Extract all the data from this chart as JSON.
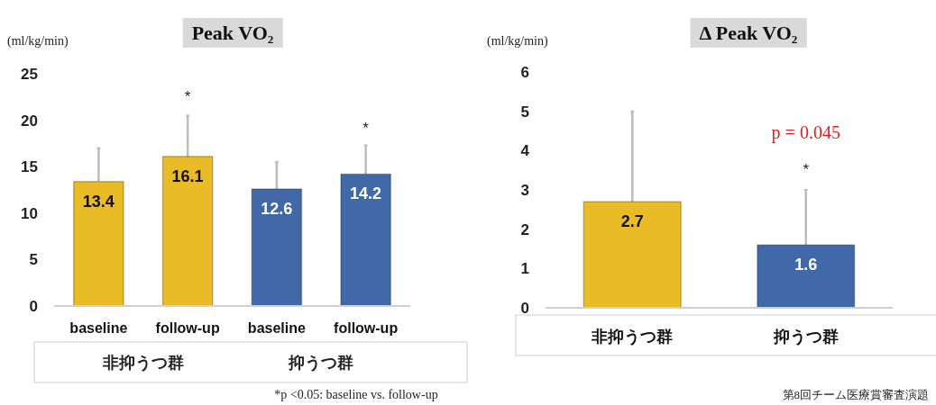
{
  "chart_data": [
    {
      "type": "bar",
      "title": "Peak VO₂",
      "ylabel": "(ml/kg/min)",
      "categories": [
        "baseline",
        "follow-up",
        "baseline",
        "follow-up"
      ],
      "values": [
        13.4,
        16.1,
        12.6,
        14.2
      ],
      "colors": [
        "#e9bc27",
        "#e9bc27",
        "#4169a8",
        "#4169a8"
      ],
      "errors": [
        [
          13.4,
          17.0
        ],
        [
          16.1,
          20.5
        ],
        [
          12.6,
          15.5
        ],
        [
          14.2,
          17.3
        ]
      ],
      "data_labels": true,
      "ylim": [
        0,
        25
      ],
      "yticks": [
        0,
        5,
        10,
        15,
        20,
        25
      ],
      "annotations": [
        "*",
        "*",
        "非抑うつ群",
        "抑うつ群",
        "*p <0.05: baseline vs. follow-up"
      ]
    },
    {
      "type": "bar",
      "title": "Δ Peak VO₂",
      "ylabel": "(ml/kg/min)",
      "categories": [
        "非抑うつ群",
        "抑うつ群"
      ],
      "values": [
        2.7,
        1.6
      ],
      "colors": [
        "#e9bc27",
        "#4169a8"
      ],
      "errors": [
        [
          2.7,
          5.0
        ],
        [
          1.6,
          3.0
        ]
      ],
      "data_labels": true,
      "ylim": [
        0,
        6
      ],
      "yticks": [
        0,
        1,
        2,
        3,
        4,
        5,
        6
      ],
      "annotations": [
        "*",
        "p = 0.045",
        "第8回チーム医療賞審査演題"
      ]
    }
  ]
}
